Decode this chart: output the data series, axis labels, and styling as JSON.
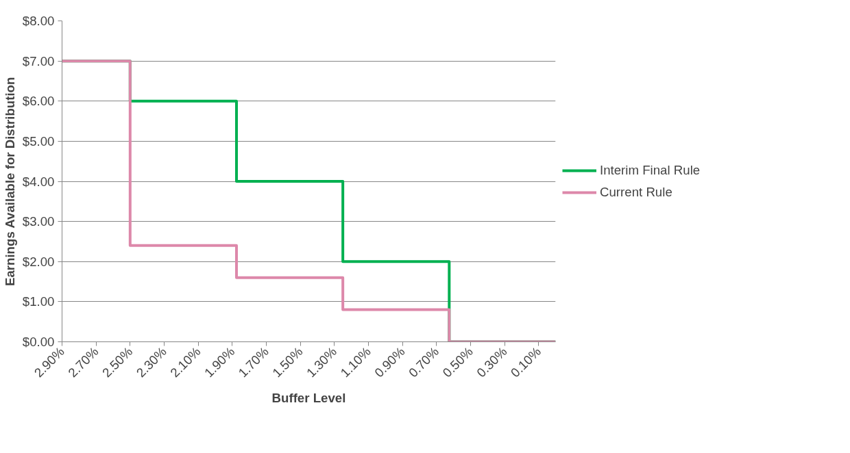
{
  "chart_data": {
    "type": "step",
    "xlabel": "Buffer Level",
    "ylabel": "Earnings Available for Distribution",
    "x": [
      2.9,
      2.5,
      1.875,
      1.25,
      0.625,
      0.0
    ],
    "series": [
      {
        "name": "Interim Final Rule",
        "color": "#00b050",
        "values": [
          7,
          6,
          4,
          2,
          0,
          0
        ]
      },
      {
        "name": "Current Rule",
        "color": "#dd88aa",
        "values": [
          7,
          2.4,
          1.6,
          0.8,
          0,
          0
        ]
      }
    ],
    "xlim": [
      2.9,
      0.0
    ],
    "xticks": [
      {
        "value": 2.9,
        "label": "2.90%"
      },
      {
        "value": 2.7,
        "label": "2.70%"
      },
      {
        "value": 2.5,
        "label": "2.50%"
      },
      {
        "value": 2.3,
        "label": "2.30%"
      },
      {
        "value": 2.1,
        "label": "2.10%"
      },
      {
        "value": 1.9,
        "label": "1.90%"
      },
      {
        "value": 1.7,
        "label": "1.70%"
      },
      {
        "value": 1.5,
        "label": "1.50%"
      },
      {
        "value": 1.3,
        "label": "1.30%"
      },
      {
        "value": 1.1,
        "label": "1.10%"
      },
      {
        "value": 0.9,
        "label": "0.90%"
      },
      {
        "value": 0.7,
        "label": "0.70%"
      },
      {
        "value": 0.5,
        "label": "0.50%"
      },
      {
        "value": 0.3,
        "label": "0.30%"
      },
      {
        "value": 0.1,
        "label": "0.10%"
      }
    ],
    "ylim": [
      0,
      8
    ],
    "yticks": [
      {
        "value": 0,
        "label": "$0.00"
      },
      {
        "value": 1,
        "label": "$1.00"
      },
      {
        "value": 2,
        "label": "$2.00"
      },
      {
        "value": 3,
        "label": "$3.00"
      },
      {
        "value": 4,
        "label": "$4.00"
      },
      {
        "value": 5,
        "label": "$5.00"
      },
      {
        "value": 6,
        "label": "$6.00"
      },
      {
        "value": 7,
        "label": "$7.00"
      },
      {
        "value": 8,
        "label": "$8.00"
      }
    ],
    "grid": "y",
    "legend": "right",
    "marker": "none",
    "line_style": "solid"
  }
}
